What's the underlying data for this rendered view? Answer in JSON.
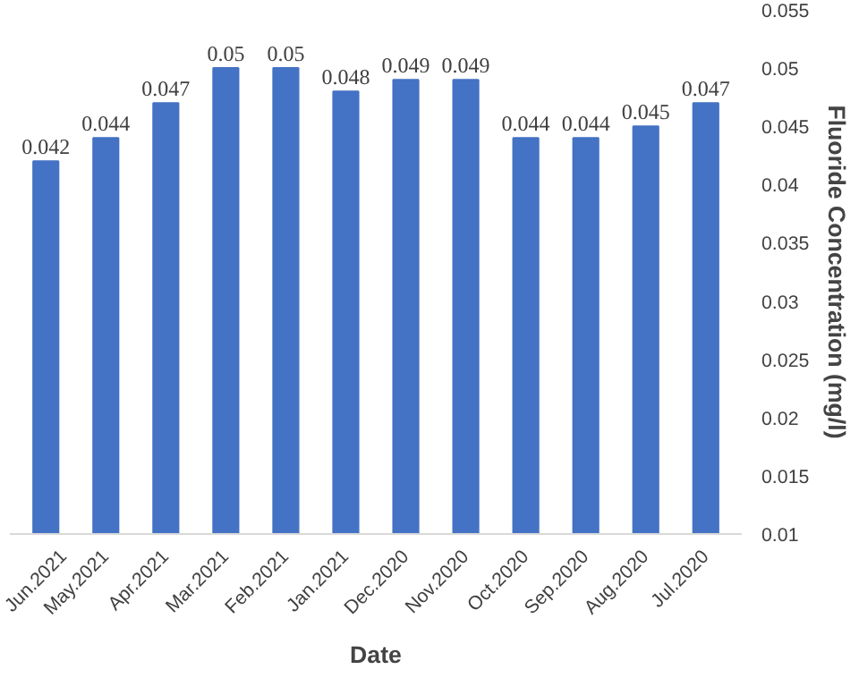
{
  "chart_data": {
    "type": "bar",
    "xlabel": "Date",
    "ylabel": "Fluoride Concentration (mg/l)",
    "categories": [
      "Jun.2021",
      "May.2021",
      "Apr.2021",
      "Mar.2021",
      "Feb.2021",
      "Jan.2021",
      "Dec.2020",
      "Nov.2020",
      "Oct.2020",
      "Sep.2020",
      "Aug.2020",
      "Jul.2020"
    ],
    "values": [
      0.042,
      0.044,
      0.047,
      0.05,
      0.05,
      0.048,
      0.049,
      0.049,
      0.044,
      0.044,
      0.045,
      0.047
    ],
    "color": "#4472c4",
    "data_labels": true,
    "grid": false,
    "ylim": [
      0.01,
      0.055
    ],
    "yticks": [
      0.01,
      0.015,
      0.02,
      0.025,
      0.03,
      0.035,
      0.04,
      0.045,
      0.05,
      0.055
    ]
  }
}
